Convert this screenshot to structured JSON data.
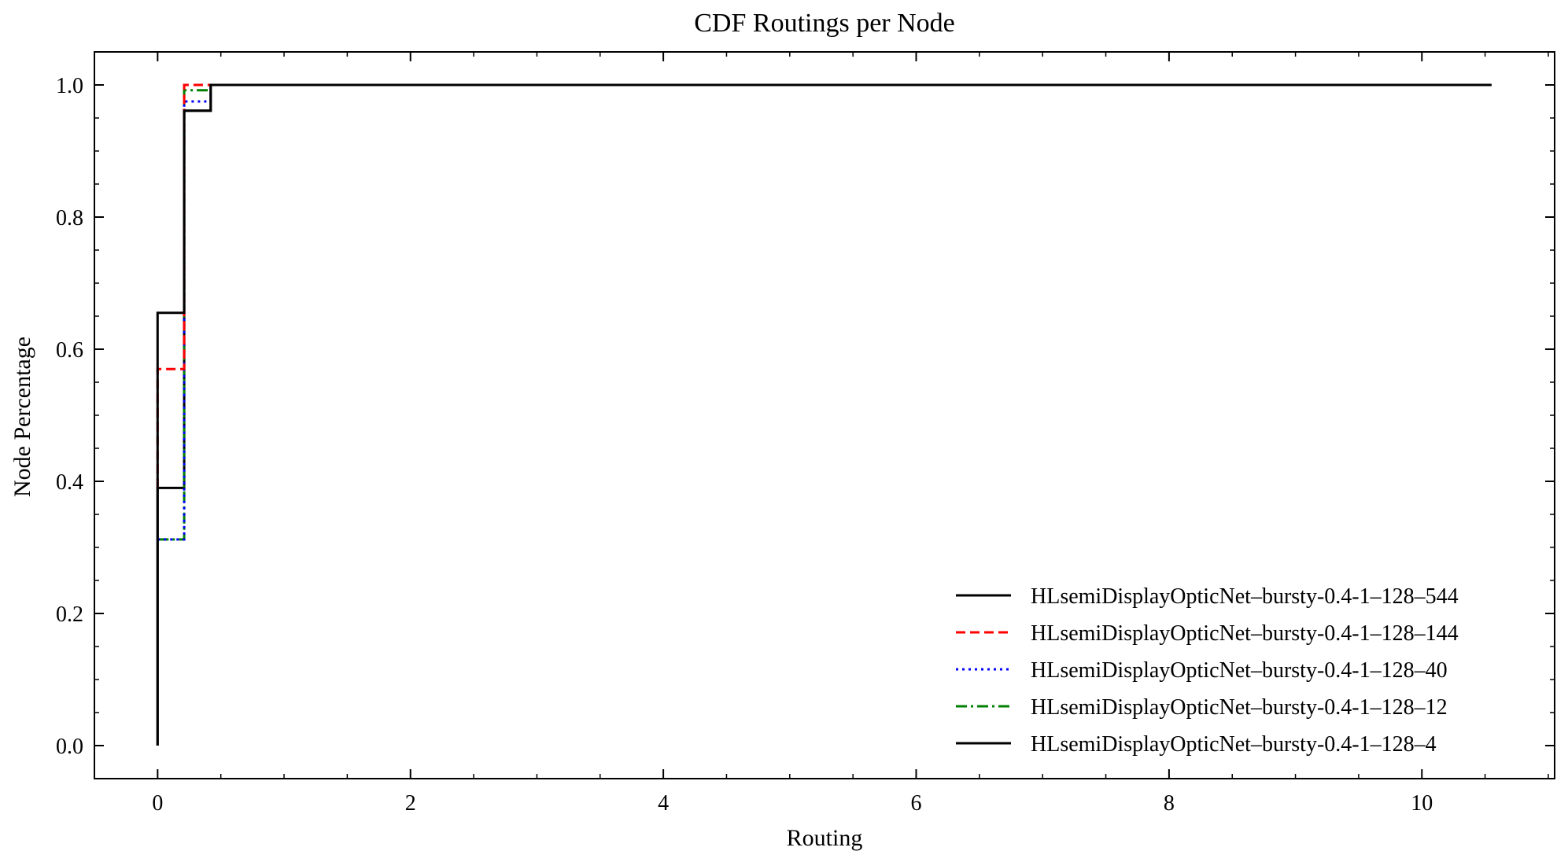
{
  "chart_data": {
    "type": "line",
    "title": "CDF Routings per Node",
    "xlabel": "Routing",
    "ylabel": "Node Percentage",
    "xlim": [
      -0.5,
      11.05
    ],
    "ylim": [
      -0.05,
      1.05
    ],
    "x_ticks": [
      0,
      2,
      4,
      6,
      8,
      10
    ],
    "y_ticks": [
      0.0,
      0.2,
      0.4,
      0.6,
      0.8,
      1.0
    ],
    "x_tick_labels": [
      "0",
      "2",
      "4",
      "6",
      "8",
      "10"
    ],
    "y_tick_labels": [
      "0.0",
      "0.2",
      "0.4",
      "0.6",
      "0.8",
      "1.0"
    ],
    "grid": false,
    "legend_position": "lower-right",
    "series": [
      {
        "name": "HLsemiDisplayOpticNet–bursty-0.4-1–128–544",
        "color": "#000000",
        "dash": "solid",
        "x": [
          0,
          0,
          0.21,
          0.21,
          0.42,
          0.42,
          10.55
        ],
        "y": [
          0,
          0.655,
          0.655,
          0.961,
          0.961,
          1.0,
          1.0
        ]
      },
      {
        "name": "HLsemiDisplayOpticNet–bursty-0.4-1–128–144",
        "color": "#ff0000",
        "dash": "dashed",
        "x": [
          0,
          0,
          0.21,
          0.21,
          10.55
        ],
        "y": [
          0.39,
          0.57,
          0.57,
          1.0,
          1.0
        ]
      },
      {
        "name": "HLsemiDisplayOpticNet–bursty-0.4-1–128–40",
        "color": "#0000ff",
        "dash": "dotted",
        "x": [
          0,
          0,
          0.21,
          0.21,
          0.42,
          0.42,
          10.55
        ],
        "y": [
          0.312,
          0.312,
          0.312,
          0.975,
          0.975,
          1.0,
          1.0
        ]
      },
      {
        "name": "HLsemiDisplayOpticNet–bursty-0.4-1–128–12",
        "color": "#008000",
        "dash": "dashdot",
        "x": [
          0,
          0,
          0.21,
          0.21,
          0.42,
          0.42,
          10.55
        ],
        "y": [
          0.312,
          0.312,
          0.312,
          0.992,
          0.992,
          1.0,
          1.0
        ]
      },
      {
        "name": "HLsemiDisplayOpticNet–bursty-0.4-1–128–4",
        "color": "#000000",
        "dash": "solid",
        "x": [
          0,
          0,
          0.21,
          0.21,
          0.42,
          0.42,
          10.55
        ],
        "y": [
          0,
          0.39,
          0.39,
          0.961,
          0.961,
          1.0,
          1.0
        ]
      }
    ]
  }
}
